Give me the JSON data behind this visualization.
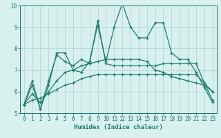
{
  "xlabel": "Humidex (Indice chaleur)",
  "x": [
    0,
    1,
    2,
    3,
    4,
    5,
    6,
    7,
    8,
    9,
    10,
    11,
    12,
    13,
    14,
    15,
    16,
    17,
    18,
    19,
    20,
    21,
    22,
    23
  ],
  "series": [
    [
      5.4,
      6.5,
      5.2,
      6.3,
      7.8,
      7.8,
      7.0,
      6.9,
      7.4,
      9.1,
      7.4,
      9.0,
      10.1,
      9.0,
      8.5,
      8.5,
      9.2,
      9.2,
      7.8,
      7.5,
      7.5,
      6.9,
      6.2,
      5.5
    ],
    [
      5.4,
      6.3,
      5.2,
      6.5,
      7.7,
      7.4,
      7.2,
      7.5,
      7.3,
      9.3,
      7.3,
      7.2,
      7.2,
      7.2,
      7.2,
      7.2,
      7.2,
      7.3,
      7.3,
      7.3,
      7.3,
      7.3,
      6.4,
      5.6
    ],
    [
      5.4,
      5.9,
      5.5,
      6.0,
      6.5,
      6.9,
      7.0,
      7.2,
      7.3,
      7.4,
      7.5,
      7.5,
      7.5,
      7.5,
      7.5,
      7.4,
      7.0,
      6.9,
      6.7,
      6.6,
      6.5,
      6.4,
      6.3,
      6.0
    ],
    [
      5.4,
      5.6,
      5.7,
      5.9,
      6.1,
      6.3,
      6.4,
      6.6,
      6.7,
      6.8,
      6.8,
      6.8,
      6.8,
      6.8,
      6.8,
      6.8,
      6.8,
      6.8,
      6.8,
      6.8,
      6.8,
      6.8,
      6.4,
      6.0
    ]
  ],
  "line_color": "#1a7a6e",
  "bg_color": "#d8f0ee",
  "grid_color": "#b0d8d4",
  "ylim": [
    5,
    10
  ],
  "xlim_min": -0.5,
  "xlim_max": 23.5,
  "yticks": [
    5,
    6,
    7,
    8,
    9,
    10
  ],
  "xticks": [
    0,
    1,
    2,
    3,
    4,
    5,
    6,
    7,
    8,
    9,
    10,
    11,
    12,
    13,
    14,
    15,
    16,
    17,
    18,
    19,
    20,
    21,
    22,
    23
  ],
  "tick_fontsize": 5.5,
  "xlabel_fontsize": 6.5,
  "linewidth": 0.9,
  "markersize": 3.5,
  "markeredgewidth": 0.9
}
